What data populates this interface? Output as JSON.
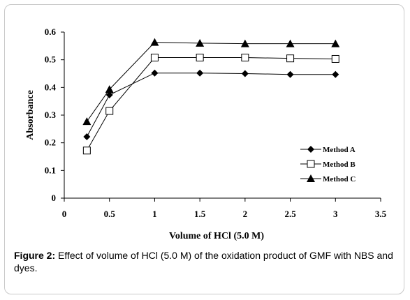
{
  "chart_data": {
    "type": "line",
    "xlabel": "Volume of HCl (5.0 M)",
    "ylabel": "Absorbance",
    "xlim": [
      0,
      3.5
    ],
    "ylim": [
      0,
      0.6
    ],
    "xticks": [
      "0",
      "0.5",
      "1",
      "1.5",
      "2",
      "2.5",
      "3",
      "3.5"
    ],
    "yticks": [
      "0",
      "0.1",
      "0.2",
      "0.3",
      "0.4",
      "0.5",
      "0.6"
    ],
    "grid": false,
    "legend_position": "right",
    "x": [
      0.25,
      0.5,
      1,
      1.5,
      2,
      2.5,
      3
    ],
    "series": [
      {
        "name": "Method A",
        "marker": "diamond",
        "values": [
          0.222,
          0.373,
          0.452,
          0.452,
          0.45,
          0.447,
          0.447
        ]
      },
      {
        "name": "Method B",
        "marker": "square-open",
        "values": [
          0.172,
          0.315,
          0.508,
          0.508,
          0.508,
          0.505,
          0.503
        ]
      },
      {
        "name": "Method C",
        "marker": "triangle",
        "values": [
          0.277,
          0.393,
          0.563,
          0.56,
          0.558,
          0.558,
          0.558
        ]
      }
    ]
  },
  "caption": {
    "label": "Figure 2:",
    "text": " Effect of volume of HCl (5.0 M) of the oxidation product of GMF with NBS and dyes."
  }
}
